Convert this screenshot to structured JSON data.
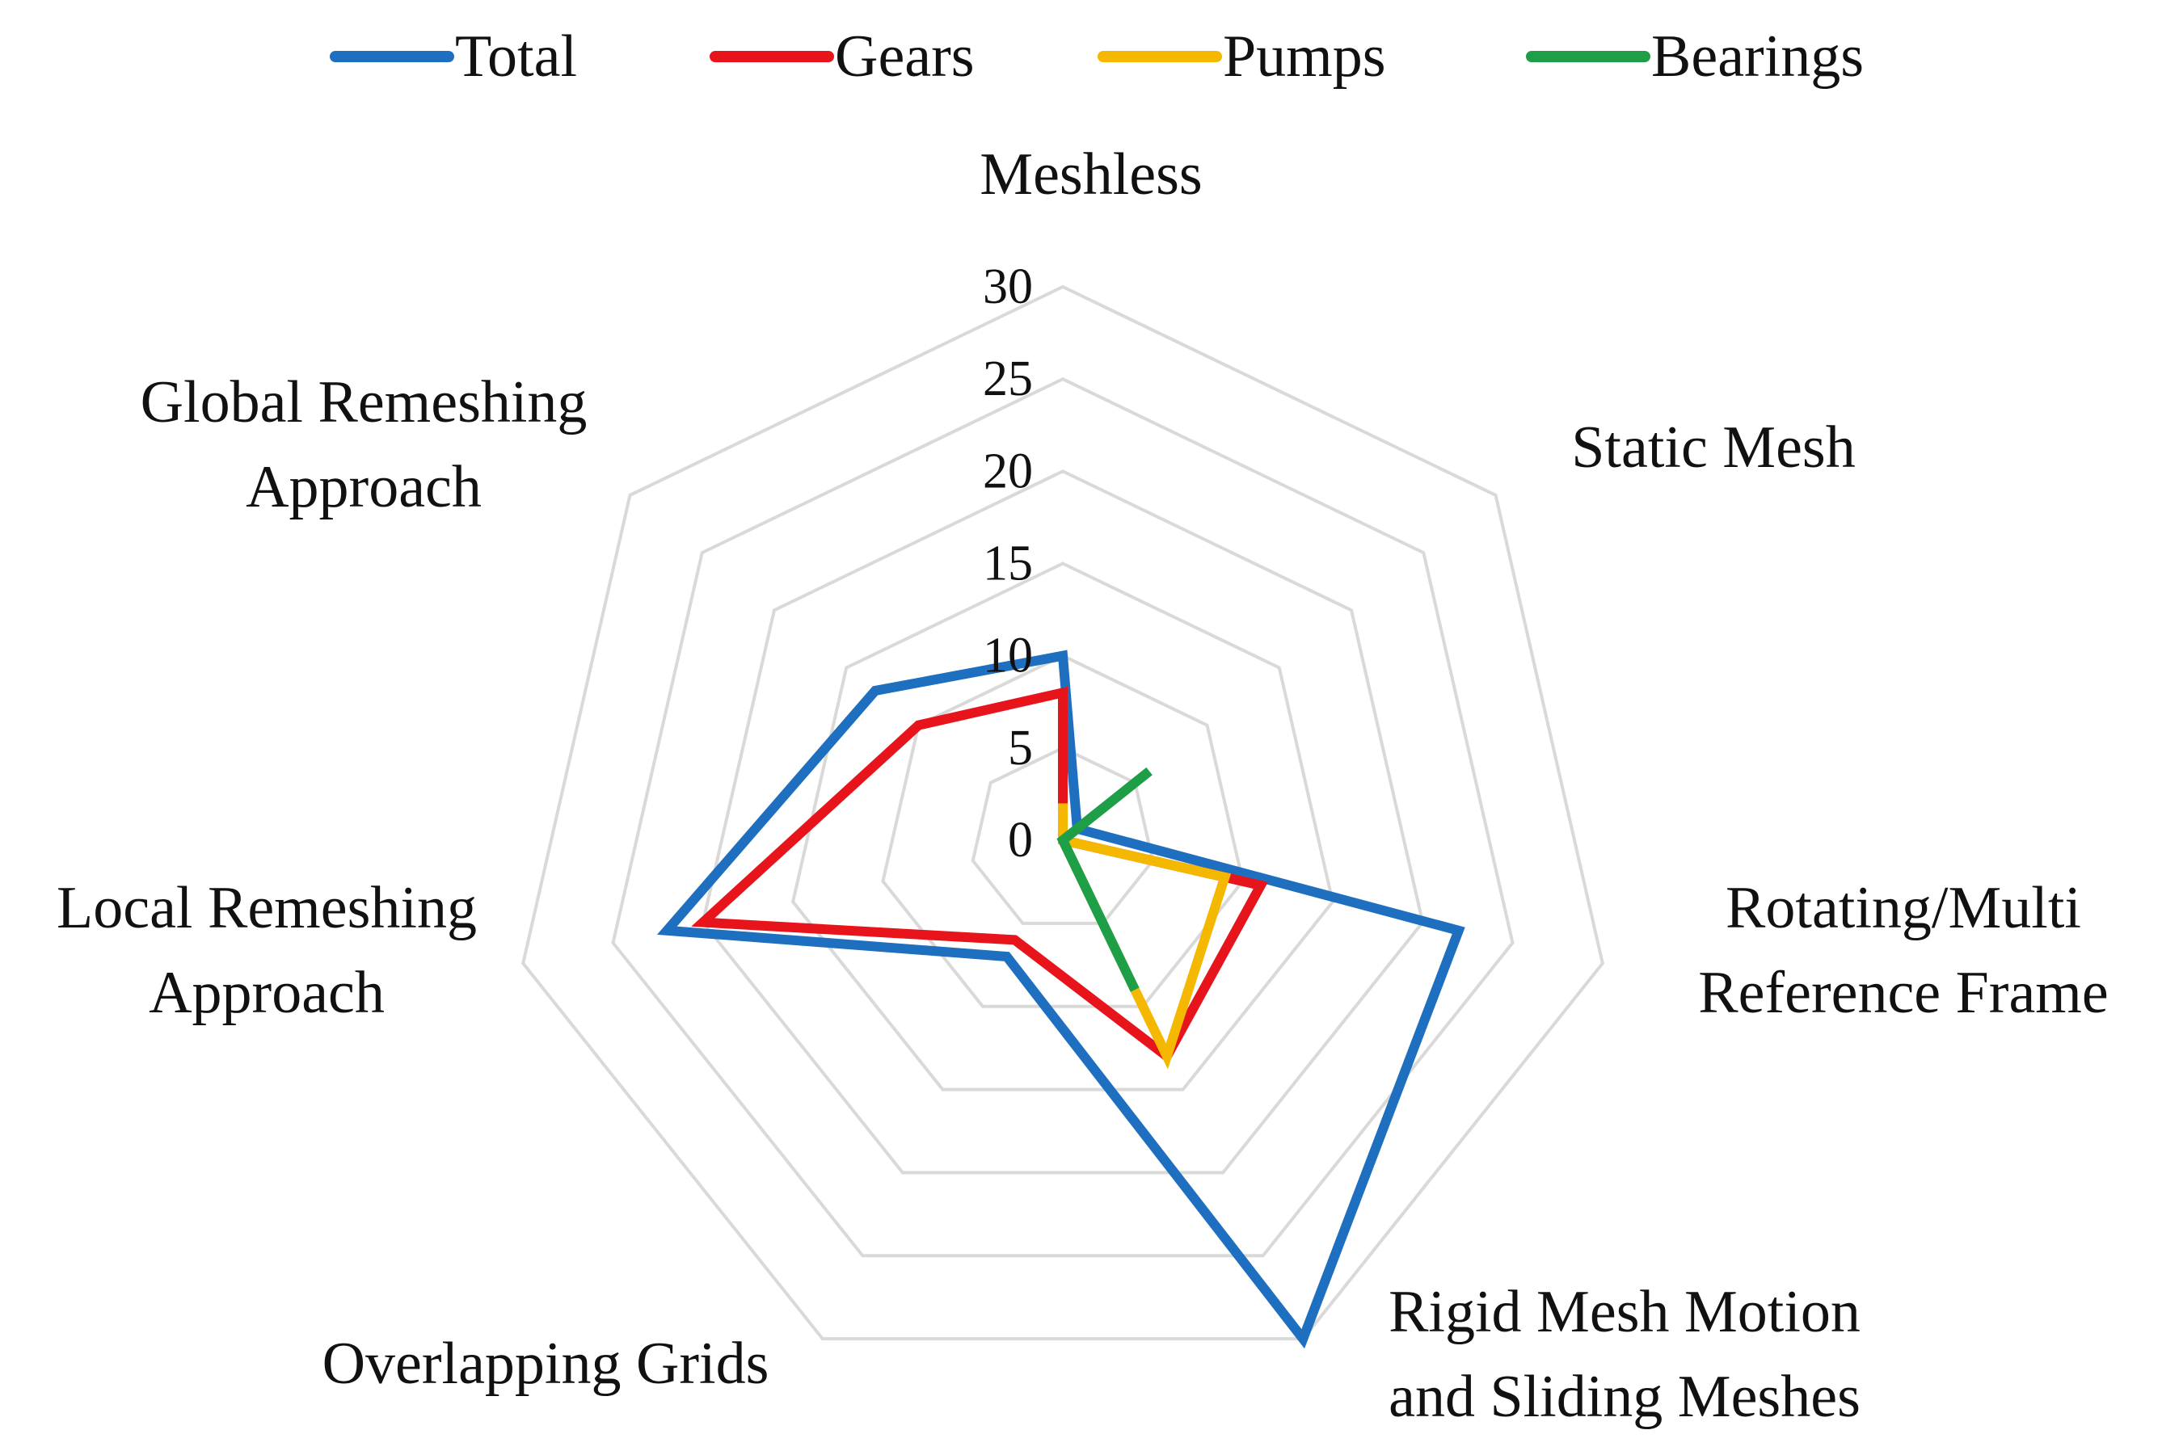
{
  "chart_data": {
    "type": "radar",
    "title": "",
    "categories": [
      "Meshless",
      "Static Mesh",
      "Rotating/Multi Reference Frame",
      "Rigid Mesh Motion and Sliding Meshes",
      "Overlapping Grids",
      "Local Remeshing Approach",
      "Global Remeshing Approach"
    ],
    "category_lines": [
      [
        "Meshless"
      ],
      [
        "Static Mesh"
      ],
      [
        "Rotating/Multi",
        "Reference Frame"
      ],
      [
        "Rigid Mesh Motion",
        "and Sliding Meshes"
      ],
      [
        "Overlapping Grids"
      ],
      [
        "Local Remeshing",
        "Approach"
      ],
      [
        "Global Remeshing",
        "Approach"
      ]
    ],
    "rlim": [
      0,
      30
    ],
    "ticks": [
      "0",
      "5",
      "10",
      "15",
      "20",
      "25",
      "30"
    ],
    "grid": true,
    "legend_position": "top",
    "series": [
      {
        "name": "Total",
        "color": "#1f6fc0",
        "values": [
          10,
          1,
          22,
          30,
          7,
          22,
          13
        ]
      },
      {
        "name": "Gears",
        "color": "#e8141b",
        "values": [
          8,
          0,
          11,
          13,
          6,
          20,
          10
        ]
      },
      {
        "name": "Pumps",
        "color": "#f5b800",
        "values": [
          2,
          0,
          9,
          13,
          0,
          0,
          0
        ]
      },
      {
        "name": "Bearings",
        "color": "#1e9e46",
        "values": [
          0,
          6,
          0,
          9,
          0,
          0,
          0
        ]
      }
    ]
  }
}
